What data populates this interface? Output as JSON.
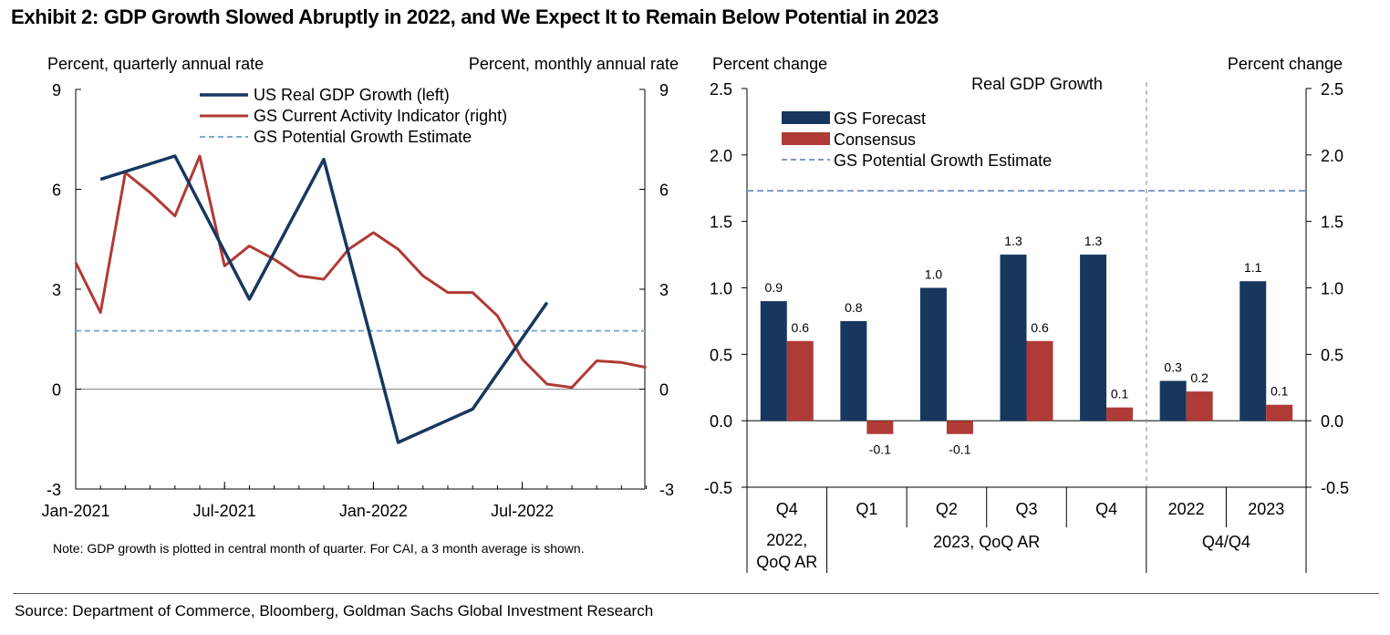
{
  "title": "Exhibit 2: GDP Growth Slowed Abruptly in 2022, and We Expect It to Remain Below Potential in 2023",
  "source": "Source: Department of Commerce, Bloomberg, Goldman Sachs Global Investment Research",
  "colors": {
    "navy": "#17375e",
    "red": "#b03a35",
    "potential": "#7f99c8",
    "dashed_left": "#7eaacb"
  },
  "chart_data": [
    {
      "type": "line",
      "ylabel_left": "Percent, quarterly annual rate",
      "ylabel_right": "Percent, monthly annual rate",
      "ylim": [
        -3,
        9
      ],
      "yticks": [
        "9",
        "6",
        "3",
        "0",
        "-3"
      ],
      "xticks": [
        "Jan-2021",
        "Jul-2021",
        "Jan-2022",
        "Jul-2022"
      ],
      "note": "Note: GDP growth is plotted in central month of quarter. For CAI, a 3 month average is shown.",
      "legend": [
        "US Real GDP Growth (left)",
        "GS Current Activity Indicator (right)",
        "GS Potential Growth Estimate"
      ],
      "series": [
        {
          "name": "US Real GDP Growth (left)",
          "axis": "left",
          "points": [
            [
              "Feb-2021",
              6.3
            ],
            [
              "May-2021",
              7.0
            ],
            [
              "Aug-2021",
              2.7
            ],
            [
              "Nov-2021",
              6.9
            ],
            [
              "Feb-2022",
              -1.6
            ],
            [
              "May-2022",
              -0.6
            ],
            [
              "Aug-2022",
              2.6
            ]
          ]
        },
        {
          "name": "GS Current Activity Indicator (right)",
          "axis": "right",
          "points": [
            [
              "Jan-2021",
              3.8
            ],
            [
              "Feb-2021",
              2.3
            ],
            [
              "Mar-2021",
              6.5
            ],
            [
              "Apr-2021",
              5.9
            ],
            [
              "May-2021",
              5.2
            ],
            [
              "Jun-2021",
              7.0
            ],
            [
              "Jul-2021",
              3.7
            ],
            [
              "Aug-2021",
              4.3
            ],
            [
              "Sep-2021",
              3.9
            ],
            [
              "Oct-2021",
              3.4
            ],
            [
              "Nov-2021",
              3.3
            ],
            [
              "Dec-2021",
              4.2
            ],
            [
              "Jan-2022",
              4.7
            ],
            [
              "Feb-2022",
              4.2
            ],
            [
              "Mar-2022",
              3.4
            ],
            [
              "Apr-2022",
              2.9
            ],
            [
              "May-2022",
              2.9
            ],
            [
              "Jun-2022",
              2.2
            ],
            [
              "Jul-2022",
              0.9
            ],
            [
              "Aug-2022",
              0.15
            ],
            [
              "Sep-2022",
              0.05
            ],
            [
              "Oct-2022",
              0.85
            ],
            [
              "Nov-2022",
              0.8
            ],
            [
              "Dec-2022",
              0.65
            ]
          ]
        },
        {
          "name": "GS Potential Growth Estimate",
          "axis": "left",
          "value": 1.75
        }
      ]
    },
    {
      "type": "bar",
      "title": "Real GDP Growth",
      "ylabel_left": "Percent change",
      "ylabel_right": "Percent change",
      "ylim": [
        -0.5,
        2.5
      ],
      "yticks": [
        "2.5",
        "2.0",
        "1.5",
        "1.0",
        "0.5",
        "0.0",
        "-0.5"
      ],
      "categories": [
        "Q4",
        "Q1",
        "Q2",
        "Q3",
        "Q4",
        "2022",
        "2023"
      ],
      "groups": [
        "2022,\nQoQ AR",
        "2023, QoQ AR",
        "Q4/Q4"
      ],
      "legend": [
        "GS Forecast",
        "Consensus",
        "GS Potential Growth Estimate"
      ],
      "series": [
        {
          "name": "GS Forecast",
          "values": [
            0.9,
            0.75,
            1.0,
            1.25,
            1.25,
            0.3,
            1.05
          ],
          "labels": [
            "0.9",
            "0.8",
            "1.0",
            "1.3",
            "1.3",
            "0.3",
            "1.1"
          ]
        },
        {
          "name": "Consensus",
          "values": [
            0.6,
            -0.1,
            -0.1,
            0.6,
            0.1,
            0.22,
            0.12
          ],
          "labels": [
            "0.6",
            "-0.1",
            "-0.1",
            "0.6",
            "0.1",
            "0.2",
            "0.1"
          ]
        },
        {
          "name": "GS Potential Growth Estimate",
          "value": 1.73
        }
      ]
    }
  ]
}
